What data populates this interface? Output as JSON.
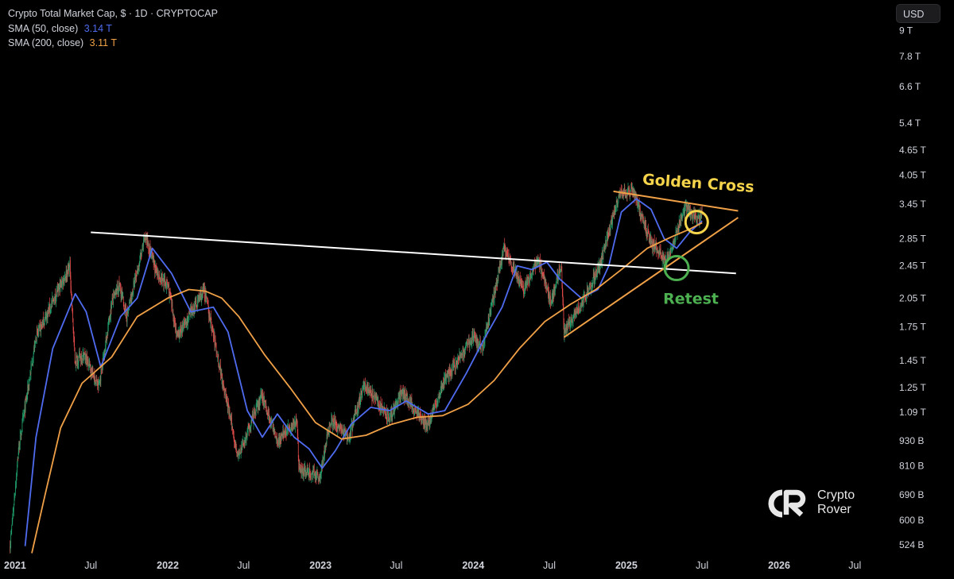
{
  "legend": {
    "title": "Crypto Total Market Cap, $ · 1D · CRYPTOCAP",
    "sma50_label": "SMA (50, close)",
    "sma50_value": "3.14 T",
    "sma200_label": "SMA (200, close)",
    "sma200_value": "3.11 T"
  },
  "currency_button": "USD",
  "brand": {
    "name": "Crypto\nRover"
  },
  "colors": {
    "background": "#000000",
    "candle_up": "#1f9e6a",
    "candle_down": "#e14a4a",
    "sma50": "#4f6bf0",
    "sma200": "#f0a046",
    "trendline_white": "#ffffff",
    "triangle_orange": "#f0a046",
    "golden_cross": "#f5d34a",
    "retest": "#4caf50"
  },
  "chart_data": {
    "type": "candlestick",
    "title": "Crypto Total Market Cap, $ · 1D · CRYPTOCAP",
    "y_scale": "log",
    "ylim": [
      510,
      9100
    ],
    "xlim": [
      "2020-12-15",
      "2026-09-05"
    ],
    "y_ticks": [
      {
        "value": 9000,
        "label": "9 T"
      },
      {
        "value": 7800,
        "label": "7.8 T"
      },
      {
        "value": 6600,
        "label": "6.6 T"
      },
      {
        "value": 5400,
        "label": "5.4 T"
      },
      {
        "value": 4650,
        "label": "4.65 T"
      },
      {
        "value": 4050,
        "label": "4.05 T"
      },
      {
        "value": 3450,
        "label": "3.45 T"
      },
      {
        "value": 2850,
        "label": "2.85 T"
      },
      {
        "value": 2450,
        "label": "2.45 T"
      },
      {
        "value": 2050,
        "label": "2.05 T"
      },
      {
        "value": 1750,
        "label": "1.75 T"
      },
      {
        "value": 1450,
        "label": "1.45 T"
      },
      {
        "value": 1250,
        "label": "1.25 T"
      },
      {
        "value": 1090,
        "label": "1.09 T"
      },
      {
        "value": 930,
        "label": "930 B"
      },
      {
        "value": 810,
        "label": "810 B"
      },
      {
        "value": 690,
        "label": "690 B"
      },
      {
        "value": 600,
        "label": "600 B"
      },
      {
        "value": 524,
        "label": "524 B"
      }
    ],
    "x_ticks": [
      {
        "date": "2021-01-01",
        "label": "2021",
        "major": true
      },
      {
        "date": "2021-07-01",
        "label": "Jul",
        "major": false
      },
      {
        "date": "2022-01-01",
        "label": "2022",
        "major": true
      },
      {
        "date": "2022-07-01",
        "label": "Jul",
        "major": false
      },
      {
        "date": "2023-01-01",
        "label": "2023",
        "major": true
      },
      {
        "date": "2023-07-01",
        "label": "Jul",
        "major": false
      },
      {
        "date": "2024-01-01",
        "label": "2024",
        "major": true
      },
      {
        "date": "2024-07-01",
        "label": "Jul",
        "major": false
      },
      {
        "date": "2025-01-01",
        "label": "2025",
        "major": true
      },
      {
        "date": "2025-07-01",
        "label": "Jul",
        "major": false
      },
      {
        "date": "2026-01-01",
        "label": "2026",
        "major": true
      },
      {
        "date": "2026-07-01",
        "label": "Jul",
        "major": false
      }
    ],
    "price_path_billions": [
      [
        "2020-12-20",
        520
      ],
      [
        "2021-01-10",
        900
      ],
      [
        "2021-02-20",
        1650
      ],
      [
        "2021-04-15",
        2150
      ],
      [
        "2021-05-12",
        2450
      ],
      [
        "2021-05-24",
        1450
      ],
      [
        "2021-06-15",
        1500
      ],
      [
        "2021-07-20",
        1250
      ],
      [
        "2021-08-20",
        2000
      ],
      [
        "2021-09-07",
        2200
      ],
      [
        "2021-09-25",
        1850
      ],
      [
        "2021-11-09",
        2900
      ],
      [
        "2021-12-05",
        2350
      ],
      [
        "2022-01-01",
        2200
      ],
      [
        "2022-01-24",
        1650
      ],
      [
        "2022-03-29",
        2150
      ],
      [
        "2022-05-12",
        1300
      ],
      [
        "2022-06-18",
        850
      ],
      [
        "2022-08-14",
        1200
      ],
      [
        "2022-09-20",
        930
      ],
      [
        "2022-11-06",
        1050
      ],
      [
        "2022-11-10",
        800
      ],
      [
        "2022-12-30",
        760
      ],
      [
        "2023-01-25",
        1050
      ],
      [
        "2023-03-10",
        950
      ],
      [
        "2023-04-15",
        1270
      ],
      [
        "2023-06-15",
        1050
      ],
      [
        "2023-07-15",
        1230
      ],
      [
        "2023-09-11",
        1000
      ],
      [
        "2023-10-25",
        1300
      ],
      [
        "2023-12-31",
        1650
      ],
      [
        "2024-01-23",
        1550
      ],
      [
        "2024-03-14",
        2700
      ],
      [
        "2024-05-01",
        2150
      ],
      [
        "2024-06-05",
        2550
      ],
      [
        "2024-07-05",
        2000
      ],
      [
        "2024-07-29",
        2450
      ],
      [
        "2024-08-05",
        1700
      ],
      [
        "2024-09-06",
        1900
      ],
      [
        "2024-10-29",
        2450
      ],
      [
        "2024-12-17",
        3700
      ],
      [
        "2025-01-20",
        3650
      ],
      [
        "2025-02-28",
        2800
      ],
      [
        "2025-04-07",
        2500
      ],
      [
        "2025-05-22",
        3400
      ],
      [
        "2025-06-22",
        3150
      ],
      [
        "2025-07-01",
        3300
      ]
    ],
    "series": [
      {
        "name": "SMA (50, close)",
        "last_value": "3.14 T",
        "points": [
          [
            "2021-01-25",
            520
          ],
          [
            "2021-02-20",
            950
          ],
          [
            "2021-04-01",
            1550
          ],
          [
            "2021-05-25",
            2100
          ],
          [
            "2021-06-20",
            1900
          ],
          [
            "2021-07-25",
            1400
          ],
          [
            "2021-09-10",
            1850
          ],
          [
            "2021-10-20",
            2050
          ],
          [
            "2021-11-25",
            2700
          ],
          [
            "2022-01-10",
            2350
          ],
          [
            "2022-02-25",
            1900
          ],
          [
            "2022-04-20",
            1950
          ],
          [
            "2022-05-25",
            1700
          ],
          [
            "2022-07-10",
            1100
          ],
          [
            "2022-08-15",
            950
          ],
          [
            "2022-09-20",
            1080
          ],
          [
            "2022-10-30",
            950
          ],
          [
            "2022-12-05",
            890
          ],
          [
            "2023-01-05",
            800
          ],
          [
            "2023-02-05",
            880
          ],
          [
            "2023-03-15",
            1020
          ],
          [
            "2023-05-01",
            1120
          ],
          [
            "2023-06-15",
            1100
          ],
          [
            "2023-07-25",
            1160
          ],
          [
            "2023-09-15",
            1080
          ],
          [
            "2023-10-25",
            1100
          ],
          [
            "2023-12-15",
            1350
          ],
          [
            "2024-01-25",
            1620
          ],
          [
            "2024-03-10",
            1950
          ],
          [
            "2024-04-15",
            2450
          ],
          [
            "2024-05-20",
            2400
          ],
          [
            "2024-06-25",
            2500
          ],
          [
            "2024-07-25",
            2280
          ],
          [
            "2024-09-15",
            2050
          ],
          [
            "2024-10-25",
            2150
          ],
          [
            "2024-11-20",
            2450
          ],
          [
            "2024-12-20",
            3300
          ],
          [
            "2025-01-25",
            3550
          ],
          [
            "2025-03-01",
            3350
          ],
          [
            "2025-04-01",
            2850
          ],
          [
            "2025-05-01",
            2700
          ],
          [
            "2025-06-01",
            2950
          ],
          [
            "2025-07-01",
            3140
          ]
        ]
      },
      {
        "name": "SMA (200, close)",
        "last_value": "3.11 T",
        "points": [
          [
            "2021-02-10",
            500
          ],
          [
            "2021-03-15",
            700
          ],
          [
            "2021-04-20",
            1000
          ],
          [
            "2021-06-10",
            1280
          ],
          [
            "2021-08-20",
            1480
          ],
          [
            "2021-10-20",
            1850
          ],
          [
            "2022-01-01",
            2050
          ],
          [
            "2022-02-20",
            2150
          ],
          [
            "2022-04-01",
            2130
          ],
          [
            "2022-05-10",
            2050
          ],
          [
            "2022-06-20",
            1850
          ],
          [
            "2022-08-20",
            1500
          ],
          [
            "2022-10-20",
            1250
          ],
          [
            "2022-12-20",
            1030
          ],
          [
            "2023-02-20",
            940
          ],
          [
            "2023-04-20",
            960
          ],
          [
            "2023-06-20",
            1020
          ],
          [
            "2023-08-20",
            1060
          ],
          [
            "2023-10-20",
            1070
          ],
          [
            "2023-12-20",
            1140
          ],
          [
            "2024-02-20",
            1300
          ],
          [
            "2024-04-20",
            1550
          ],
          [
            "2024-06-20",
            1800
          ],
          [
            "2024-08-20",
            1980
          ],
          [
            "2024-10-20",
            2150
          ],
          [
            "2024-12-20",
            2400
          ],
          [
            "2025-02-20",
            2700
          ],
          [
            "2025-04-20",
            2880
          ],
          [
            "2025-06-01",
            3000
          ],
          [
            "2025-07-01",
            3110
          ]
        ]
      }
    ],
    "trendlines": [
      {
        "kind": "horizontal-resistance",
        "color": "#ffffff",
        "from": [
          "2021-07-01",
          2950
        ],
        "to": [
          "2025-09-20",
          2350
        ]
      },
      {
        "kind": "triangle-upper",
        "color": "#f0a046",
        "from": [
          "2024-12-01",
          3700
        ],
        "to": [
          "2025-09-25",
          3320
        ]
      },
      {
        "kind": "triangle-lower",
        "color": "#f0a046",
        "from": [
          "2024-08-05",
          1650
        ],
        "to": [
          "2025-09-25",
          3200
        ]
      }
    ],
    "annotations": [
      {
        "text": "Golden Cross",
        "color": "#f5d34a",
        "circle_at": [
          "2025-06-18",
          3120
        ]
      },
      {
        "text": "Retest",
        "color": "#4caf50",
        "circle_at": [
          "2025-05-01",
          2420
        ]
      }
    ]
  }
}
